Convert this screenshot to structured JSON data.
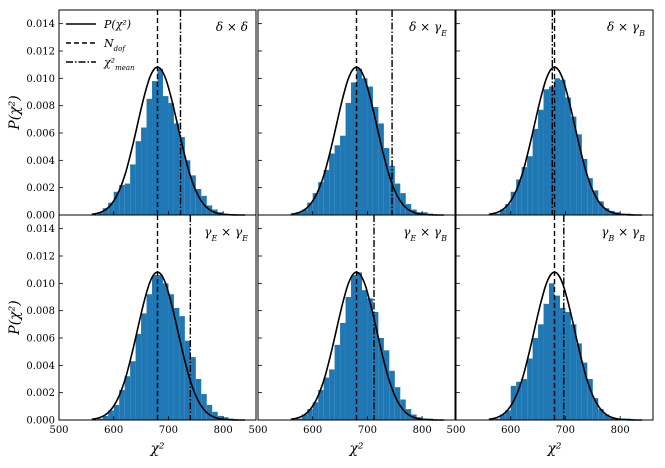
{
  "colors": {
    "histogram": "#1f77b4",
    "curve": "#000000"
  },
  "legend": {
    "placement": "top-left of first panel",
    "entries": [
      {
        "label": "P(χ²)",
        "style": "solid"
      },
      {
        "label": "N_dof",
        "style": "dashed"
      },
      {
        "label": "χ²_mean",
        "style": "dashdot"
      }
    ]
  },
  "chart_data": [
    {
      "type": "bar",
      "title": "δ × δ",
      "xlabel": "",
      "ylabel": "P(χ²)",
      "xlim": [
        500,
        860
      ],
      "ylim": [
        0,
        0.015
      ],
      "xticks": [],
      "yticks": [
        "0.000",
        "0.002",
        "0.004",
        "0.006",
        "0.008",
        "0.010",
        "0.012",
        "0.014"
      ],
      "bin_edges": [
        570,
        580,
        590,
        600,
        610,
        620,
        630,
        640,
        650,
        660,
        670,
        680,
        690,
        700,
        710,
        720,
        730,
        740,
        750,
        760,
        770,
        780,
        790,
        800,
        810,
        820
      ],
      "values": [
        0.0002,
        0.0005,
        0.0009,
        0.0017,
        0.0022,
        0.0023,
        0.0037,
        0.0054,
        0.0064,
        0.0085,
        0.0098,
        0.0107,
        0.0087,
        0.0082,
        0.0067,
        0.0057,
        0.004,
        0.0029,
        0.0019,
        0.0014,
        0.0007,
        0.0004,
        0.0002,
        0.0001,
        5e-05
      ],
      "n_dof": 680,
      "chi2_mean": 722
    },
    {
      "type": "bar",
      "title": "δ × γ_E",
      "xlabel": "",
      "ylabel": "",
      "xlim": [
        500,
        860
      ],
      "ylim": [
        0,
        0.015
      ],
      "xticks": [],
      "yticks": [],
      "bin_edges": [
        570,
        580,
        590,
        600,
        610,
        620,
        630,
        640,
        650,
        660,
        670,
        680,
        690,
        700,
        710,
        720,
        730,
        740,
        750,
        760,
        770,
        780,
        790,
        800,
        810,
        820
      ],
      "values": [
        0.0002,
        0.0004,
        0.0009,
        0.0016,
        0.0024,
        0.0033,
        0.0045,
        0.0051,
        0.0058,
        0.0082,
        0.0097,
        0.0107,
        0.01,
        0.0094,
        0.0079,
        0.0067,
        0.0049,
        0.0036,
        0.0023,
        0.0016,
        0.0008,
        0.0004,
        0.0002,
        0.0002,
        0.0001
      ],
      "n_dof": 680,
      "chi2_mean": 745
    },
    {
      "type": "bar",
      "title": "δ × γ_B",
      "xlabel": "",
      "ylabel": "",
      "xlim": [
        500,
        860
      ],
      "ylim": [
        0,
        0.015
      ],
      "xticks": [],
      "yticks": [],
      "bin_edges": [
        570,
        580,
        590,
        600,
        610,
        620,
        630,
        640,
        650,
        660,
        670,
        680,
        690,
        700,
        710,
        720,
        730,
        740,
        750,
        760,
        770,
        780,
        790,
        800,
        810,
        820
      ],
      "values": [
        0.0001,
        0.0004,
        0.0008,
        0.0017,
        0.0026,
        0.0035,
        0.0043,
        0.0063,
        0.0077,
        0.0092,
        0.0094,
        0.01,
        0.0099,
        0.0086,
        0.0072,
        0.0059,
        0.0041,
        0.0027,
        0.0018,
        0.001,
        0.0005,
        0.0003,
        0.0002,
        0.0001,
        0.0001
      ],
      "n_dof": 680,
      "chi2_mean": 676
    },
    {
      "type": "bar",
      "title": "γ_E × γ_E",
      "xlabel": "χ²",
      "ylabel": "P(χ²)",
      "xlim": [
        500,
        860
      ],
      "ylim": [
        0,
        0.015
      ],
      "xticks": [
        "500",
        "600",
        "700",
        "800"
      ],
      "yticks": [
        "0.000",
        "0.002",
        "0.004",
        "0.006",
        "0.008",
        "0.010",
        "0.012",
        "0.014"
      ],
      "bin_edges": [
        570,
        580,
        590,
        600,
        610,
        620,
        630,
        640,
        650,
        660,
        670,
        680,
        690,
        700,
        710,
        720,
        730,
        740,
        750,
        760,
        770,
        780,
        790,
        800,
        810,
        820
      ],
      "values": [
        0.0001,
        0.0003,
        0.0007,
        0.0011,
        0.0022,
        0.0032,
        0.0043,
        0.0063,
        0.0078,
        0.0092,
        0.0106,
        0.0106,
        0.01,
        0.0092,
        0.0082,
        0.0076,
        0.0058,
        0.0046,
        0.003,
        0.0019,
        0.0011,
        0.0006,
        0.0003,
        0.0002,
        0.0001
      ],
      "n_dof": 680,
      "chi2_mean": 740
    },
    {
      "type": "bar",
      "title": "γ_E × γ_B",
      "xlabel": "χ²",
      "ylabel": "",
      "xlim": [
        500,
        860
      ],
      "ylim": [
        0,
        0.015
      ],
      "xticks": [
        "500",
        "600",
        "700",
        "800"
      ],
      "yticks": [],
      "bin_edges": [
        570,
        580,
        590,
        600,
        610,
        620,
        630,
        640,
        650,
        660,
        670,
        680,
        690,
        700,
        710,
        720,
        730,
        740,
        750,
        760,
        770,
        780,
        790,
        800,
        810,
        820
      ],
      "values": [
        0.0001,
        0.0004,
        0.0008,
        0.0013,
        0.0022,
        0.0031,
        0.0037,
        0.0055,
        0.0071,
        0.009,
        0.0106,
        0.0108,
        0.0095,
        0.0089,
        0.0079,
        0.006,
        0.0051,
        0.0036,
        0.0024,
        0.0015,
        0.0008,
        0.0004,
        0.0002,
        0.0001,
        0.0001
      ],
      "n_dof": 680,
      "chi2_mean": 712
    },
    {
      "type": "bar",
      "title": "γ_B × γ_B",
      "xlabel": "χ²",
      "ylabel": "",
      "xlim": [
        500,
        860
      ],
      "ylim": [
        0,
        0.015
      ],
      "xticks": [
        "500",
        "600",
        "700",
        "800"
      ],
      "yticks": [],
      "bin_edges": [
        570,
        580,
        590,
        600,
        610,
        620,
        630,
        640,
        650,
        660,
        670,
        680,
        690,
        700,
        710,
        720,
        730,
        740,
        750,
        760,
        770,
        780,
        790,
        800,
        810,
        820
      ],
      "values": [
        0.0001,
        0.0004,
        0.0007,
        0.0025,
        0.0028,
        0.003,
        0.0045,
        0.006,
        0.007,
        0.0085,
        0.01,
        0.0091,
        0.0082,
        0.0079,
        0.007,
        0.0056,
        0.0042,
        0.003,
        0.0016,
        0.0008,
        0.0004,
        0.0002,
        0.0001,
        0.0001,
        0.0001
      ],
      "n_dof": 680,
      "chi2_mean": 697
    }
  ]
}
